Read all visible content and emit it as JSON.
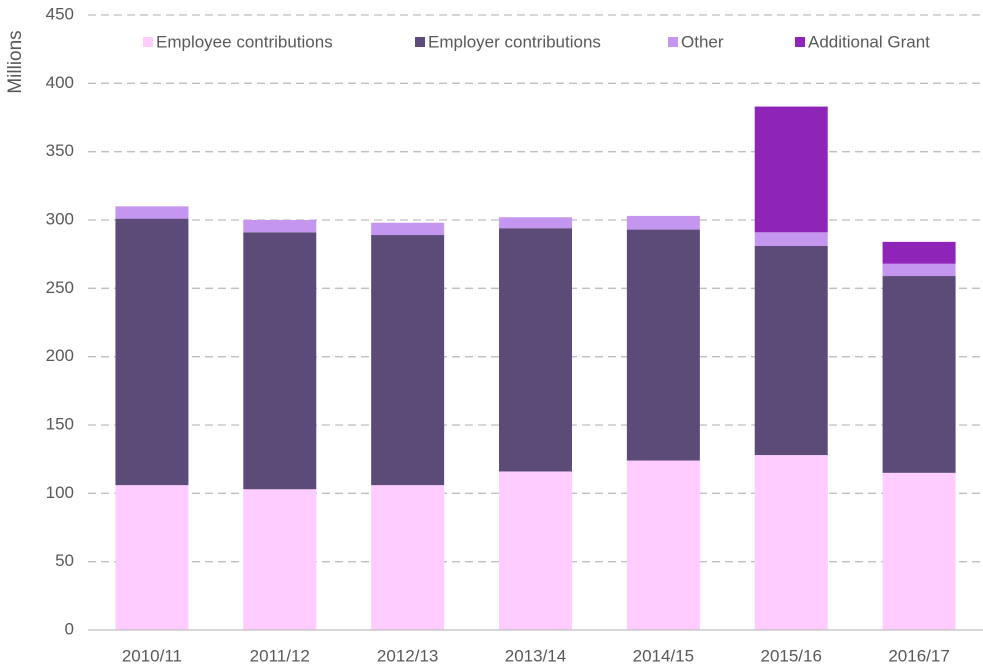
{
  "chart_data": {
    "type": "stacked_bar",
    "y_label": "Millions",
    "categories": [
      "2010/11",
      "2011/12",
      "2012/13",
      "2013/14",
      "2014/15",
      "2015/16",
      "2016/17"
    ],
    "series": [
      {
        "name": "Employee contributions",
        "color": "#ffccff",
        "values": [
          106,
          103,
          106,
          116,
          124,
          128,
          115
        ]
      },
      {
        "name": "Employer contributions",
        "color": "#5c4a78",
        "values": [
          195,
          188,
          183,
          178,
          169,
          153,
          144
        ]
      },
      {
        "name": "Other",
        "color": "#c496f0",
        "values": [
          9,
          9,
          9,
          8,
          10,
          10,
          9
        ]
      },
      {
        "name": "Additional Grant",
        "color": "#8e24b8",
        "values": [
          null,
          null,
          null,
          null,
          null,
          92,
          16
        ]
      }
    ],
    "ylim": [
      0,
      450
    ],
    "yticks": [
      0,
      50,
      100,
      150,
      200,
      250,
      300,
      350,
      400,
      450
    ],
    "grid": true,
    "legend": "top"
  }
}
